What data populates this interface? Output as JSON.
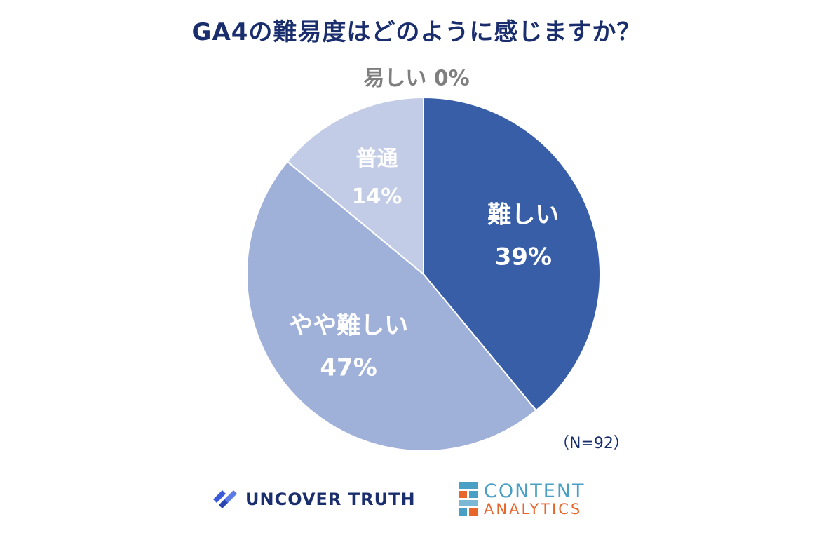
{
  "chart_data": {
    "type": "pie",
    "title": "GA4の難易度はどのように感じますか？",
    "slices": [
      {
        "label": "難しい",
        "value": 39,
        "value_label": "39%",
        "color": "#385ea7",
        "text_color": "#ffffff"
      },
      {
        "label": "やや難しい",
        "value": 47,
        "value_label": "47%",
        "color": "#9fb0d9",
        "text_color": "#ffffff"
      },
      {
        "label": "普通",
        "value": 14,
        "value_label": "14%",
        "color": "#c2cce6",
        "text_color": "#ffffff"
      },
      {
        "label": "易しい",
        "value": 0,
        "value_label": "0%",
        "color": "#7f7f7f",
        "text_color": "#7f7f7f"
      }
    ],
    "note": "（N=92）"
  },
  "logos": {
    "uncover": {
      "text": "UNCOVER TRUTH",
      "color": "#1a2e6e",
      "accent": "#3a5bd9"
    },
    "content": {
      "line1": "CONTENT",
      "line2": "ANALYTICS",
      "color1": "#4a9fc4",
      "color2": "#e8662c"
    }
  }
}
